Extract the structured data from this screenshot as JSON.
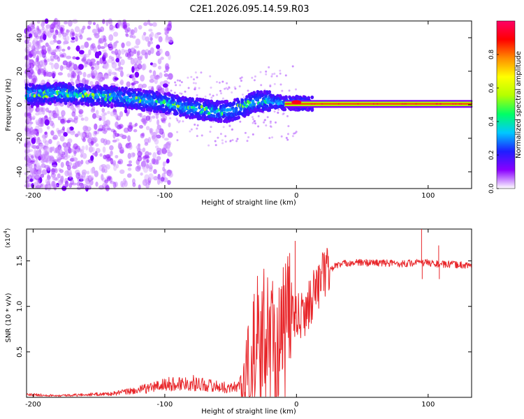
{
  "title": "C2E1.2026.095.14.59.R03",
  "colors": {
    "snr_line": "#e8262a",
    "colorbar": [
      "#ffffff",
      "#8a00ff",
      "#1e1eff",
      "#00c8ff",
      "#00ff66",
      "#b4ff00",
      "#ffff00",
      "#ff8c00",
      "#ff0000",
      "#ff0066"
    ]
  },
  "chart_data": [
    {
      "type": "heatmap",
      "name": "spectrogram",
      "xlabel": "Height of straight line (km)",
      "ylabel": "Frequency (Hz)",
      "xlim": [
        -205,
        133
      ],
      "ylim": [
        -50,
        50
      ],
      "xticks": [
        -200,
        -100,
        0,
        100
      ],
      "xtick_labels": [
        "-200",
        "-100",
        "0",
        "100"
      ],
      "yticks": [
        -40,
        -20,
        0,
        20,
        40
      ],
      "ytick_labels": [
        "-40",
        "-20",
        "0",
        "20",
        "40"
      ],
      "colorbar": {
        "label": "Normalized spectral amplitude",
        "range": [
          0,
          1
        ],
        "ticks": [
          0.0,
          0.2,
          0.4,
          0.6,
          0.8
        ],
        "tick_labels": [
          "0.0",
          "0.2",
          "0.4",
          "0.6",
          "0.8"
        ]
      },
      "ridge": {
        "x": [
          -205,
          -180,
          -160,
          -140,
          -120,
          -100,
          -80,
          -60,
          -50,
          -40,
          -30,
          -20,
          -10,
          0,
          10,
          20,
          60,
          100,
          133
        ],
        "freq": [
          6,
          7,
          6,
          5,
          3,
          1,
          -2,
          -4,
          -4,
          -1,
          2,
          2,
          1,
          1,
          0.5,
          0.5,
          0.5,
          0.5,
          0.5
        ]
      }
    },
    {
      "type": "line",
      "name": "snr",
      "xlabel": "Height of straight line (km)",
      "ylabel": "SNR (10 * v/v)",
      "scale_label": "(x10",
      "scale_exponent": "4",
      "xlim": [
        -205,
        133
      ],
      "ylim": [
        0,
        1.85
      ],
      "xticks": [
        -200,
        -100,
        0,
        100
      ],
      "xtick_labels": [
        "-200",
        "-100",
        "0",
        "100"
      ],
      "yticks": [
        0.5,
        1.0,
        1.5
      ],
      "ytick_labels": [
        "0.5",
        "1.0",
        "1.5"
      ],
      "envelope": {
        "x": [
          -205,
          -180,
          -160,
          -140,
          -120,
          -100,
          -80,
          -60,
          -50,
          -40,
          -35,
          -30,
          -25,
          -20,
          -15,
          -10,
          -5,
          0,
          5,
          10,
          15,
          20,
          30,
          40,
          60,
          80,
          90,
          100,
          110,
          120,
          133
        ],
        "y": [
          0.03,
          0.02,
          0.03,
          0.04,
          0.08,
          0.14,
          0.16,
          0.12,
          0.1,
          0.15,
          0.3,
          0.5,
          0.62,
          0.6,
          0.55,
          0.6,
          0.9,
          0.85,
          0.9,
          1.05,
          1.2,
          1.35,
          1.45,
          1.48,
          1.48,
          1.47,
          1.48,
          1.48,
          1.46,
          1.46,
          1.45
        ]
      },
      "spikes": [
        {
          "x": -1,
          "y": 1.72
        },
        {
          "x": 95,
          "y": 1.86
        },
        {
          "x": 95.5,
          "y": 1.3
        },
        {
          "x": 108,
          "y": 1.67
        },
        {
          "x": 108.5,
          "y": 1.3
        }
      ],
      "series": [
        {
          "name": "SNR",
          "color": "#e8262a"
        }
      ]
    }
  ]
}
